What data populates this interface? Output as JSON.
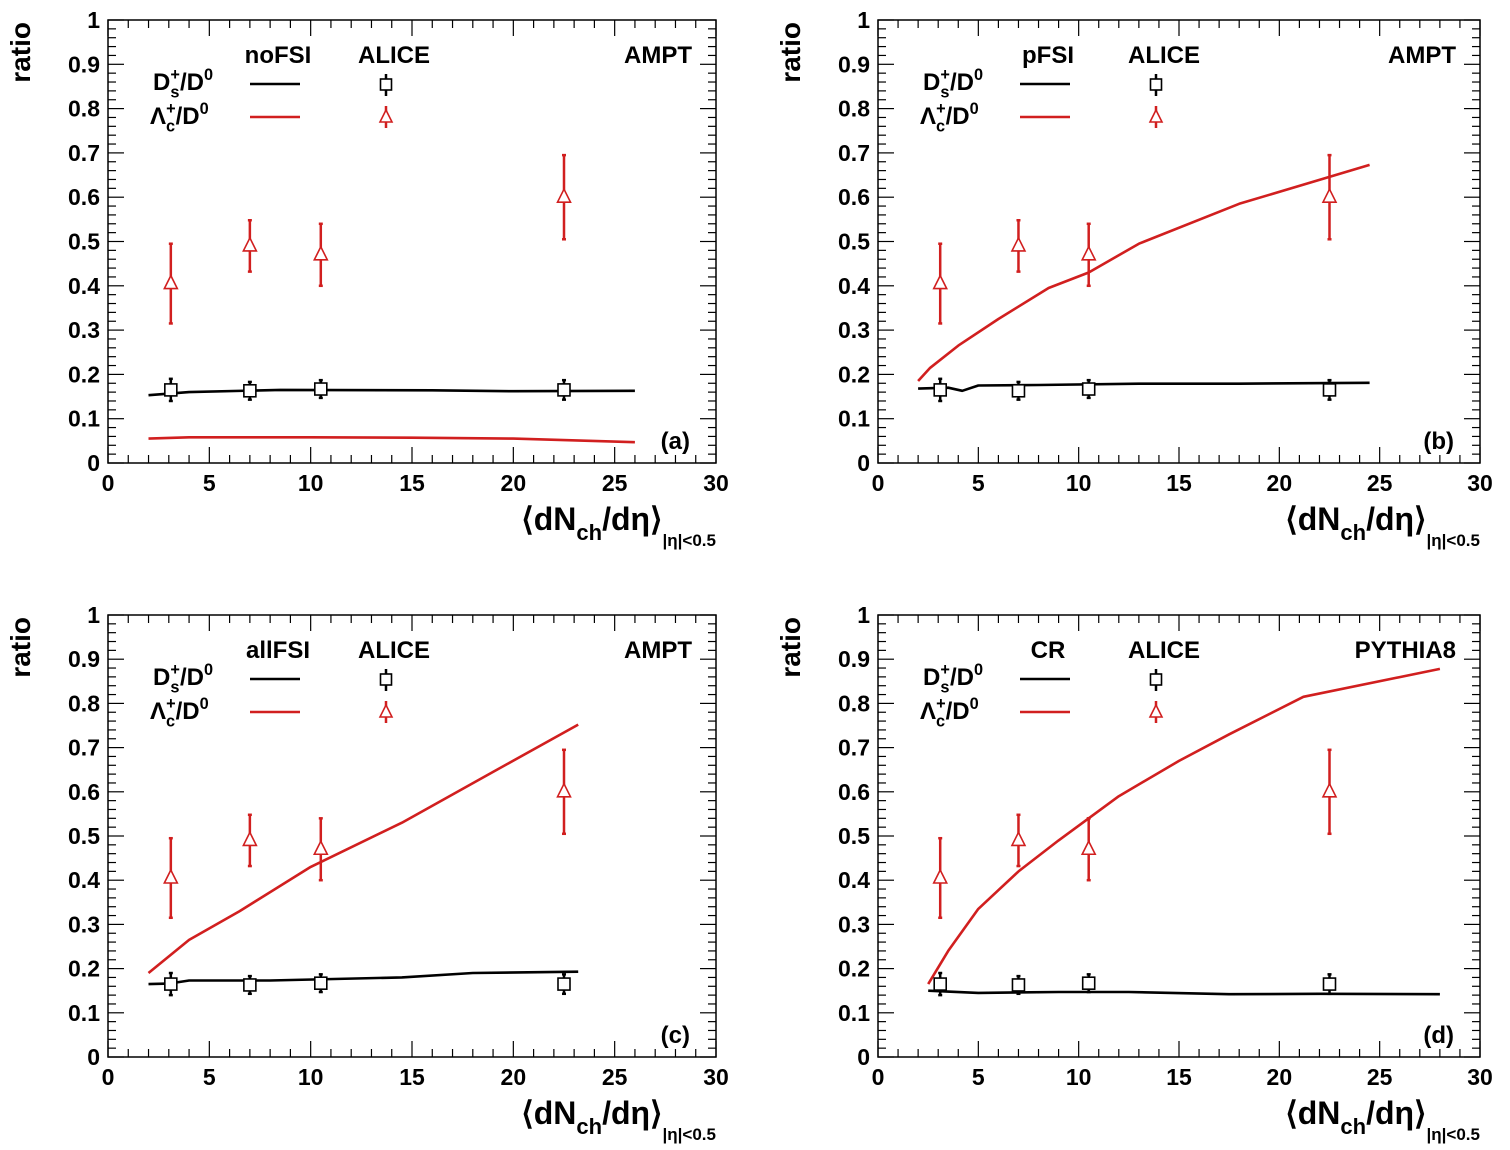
{
  "colors": {
    "black": "#000000",
    "red": "#d11f1f"
  },
  "chart_data": [
    {
      "type": "line",
      "panel_label": "(a)",
      "model_label": "noFSI",
      "data_label": "ALICE",
      "generator_label": "AMPT",
      "legend_ds": "D_s^+/D^0",
      "legend_lc": "Λ_c^+/D^0",
      "ylabel": "ratio",
      "xlabel": "⟨dN_ch/dη⟩_|η|<0.5",
      "xlim": [
        0,
        30
      ],
      "ylim": [
        0,
        1
      ],
      "x_ticks": [
        "0",
        "5",
        "10",
        "15",
        "20",
        "25",
        "30"
      ],
      "y_ticks": [
        "0",
        "0.1",
        "0.2",
        "0.3",
        "0.4",
        "0.5",
        "0.6",
        "0.7",
        "0.8",
        "0.9",
        "1"
      ],
      "series": [
        {
          "name": "D_s^+/D^0",
          "kind": "model",
          "x": [
            2,
            4,
            8.5,
            16,
            20,
            26
          ],
          "y": [
            0.153,
            0.16,
            0.165,
            0.164,
            0.162,
            0.163
          ]
        },
        {
          "name": "Λ_c^+/D^0",
          "kind": "model",
          "x": [
            2,
            4,
            10,
            15,
            20,
            26
          ],
          "y": [
            0.055,
            0.058,
            0.058,
            0.057,
            0.055,
            0.047
          ]
        },
        {
          "name": "D_s^+/D^0",
          "kind": "ALICE",
          "x": [
            3.1,
            7,
            10.5,
            22.5
          ],
          "y": [
            0.165,
            0.163,
            0.167,
            0.165
          ],
          "err": [
            0.025,
            0.02,
            0.02,
            0.022
          ]
        },
        {
          "name": "Λ_c^+/D^0",
          "kind": "ALICE",
          "x": [
            3.1,
            7,
            10.5,
            22.5
          ],
          "y": [
            0.405,
            0.49,
            0.47,
            0.6
          ],
          "err": [
            0.09,
            0.058,
            0.07,
            0.095
          ]
        }
      ]
    },
    {
      "type": "line",
      "panel_label": "(b)",
      "model_label": "pFSI",
      "data_label": "ALICE",
      "generator_label": "AMPT",
      "legend_ds": "D_s^+/D^0",
      "legend_lc": "Λ_c^+/D^0",
      "ylabel": "ratio",
      "xlabel": "⟨dN_ch/dη⟩_|η|<0.5",
      "xlim": [
        0,
        30
      ],
      "ylim": [
        0,
        1
      ],
      "x_ticks": [
        "0",
        "5",
        "10",
        "15",
        "20",
        "25",
        "30"
      ],
      "y_ticks": [
        "0",
        "0.1",
        "0.2",
        "0.3",
        "0.4",
        "0.5",
        "0.6",
        "0.7",
        "0.8",
        "0.9",
        "1"
      ],
      "series": [
        {
          "name": "D_s^+/D^0",
          "kind": "model",
          "x": [
            2,
            3.5,
            4.2,
            5,
            8,
            13,
            18,
            24.5
          ],
          "y": [
            0.168,
            0.17,
            0.163,
            0.175,
            0.176,
            0.179,
            0.179,
            0.181
          ]
        },
        {
          "name": "Λ_c^+/D^0",
          "kind": "model",
          "x": [
            2,
            2.6,
            4,
            6,
            8.5,
            10.5,
            13,
            18,
            24.5
          ],
          "y": [
            0.185,
            0.215,
            0.265,
            0.325,
            0.395,
            0.43,
            0.495,
            0.585,
            0.673
          ]
        },
        {
          "name": "D_s^+/D^0",
          "kind": "ALICE",
          "x": [
            3.1,
            7,
            10.5,
            22.5
          ],
          "y": [
            0.165,
            0.163,
            0.167,
            0.165
          ],
          "err": [
            0.025,
            0.02,
            0.02,
            0.022
          ]
        },
        {
          "name": "Λ_c^+/D^0",
          "kind": "ALICE",
          "x": [
            3.1,
            7,
            10.5,
            22.5
          ],
          "y": [
            0.405,
            0.49,
            0.47,
            0.6
          ],
          "err": [
            0.09,
            0.058,
            0.07,
            0.095
          ]
        }
      ]
    },
    {
      "type": "line",
      "panel_label": "(c)",
      "model_label": "allFSI",
      "data_label": "ALICE",
      "generator_label": "AMPT",
      "legend_ds": "D_s^+/D^0",
      "legend_lc": "Λ_c^+/D^0",
      "ylabel": "ratio",
      "xlabel": "⟨dN_ch/dη⟩_|η|<0.5",
      "xlim": [
        0,
        30
      ],
      "ylim": [
        0,
        1
      ],
      "x_ticks": [
        "0",
        "5",
        "10",
        "15",
        "20",
        "25",
        "30"
      ],
      "y_ticks": [
        "0",
        "0.1",
        "0.2",
        "0.3",
        "0.4",
        "0.5",
        "0.6",
        "0.7",
        "0.8",
        "0.9",
        "1"
      ],
      "series": [
        {
          "name": "D_s^+/D^0",
          "kind": "model",
          "x": [
            2,
            3,
            4,
            8,
            14.5,
            18,
            23.2
          ],
          "y": [
            0.165,
            0.166,
            0.173,
            0.173,
            0.18,
            0.19,
            0.193
          ]
        },
        {
          "name": "Λ_c^+/D^0",
          "kind": "model",
          "x": [
            2,
            4,
            6.5,
            10,
            14.5,
            19,
            23.2
          ],
          "y": [
            0.19,
            0.265,
            0.33,
            0.43,
            0.53,
            0.645,
            0.752
          ]
        },
        {
          "name": "D_s^+/D^0",
          "kind": "ALICE",
          "x": [
            3.1,
            7,
            10.5,
            22.5
          ],
          "y": [
            0.165,
            0.163,
            0.167,
            0.165
          ],
          "err": [
            0.025,
            0.02,
            0.02,
            0.022
          ]
        },
        {
          "name": "Λ_c^+/D^0",
          "kind": "ALICE",
          "x": [
            3.1,
            7,
            10.5,
            22.5
          ],
          "y": [
            0.405,
            0.49,
            0.47,
            0.6
          ],
          "err": [
            0.09,
            0.058,
            0.07,
            0.095
          ]
        }
      ]
    },
    {
      "type": "line",
      "panel_label": "(d)",
      "model_label": "CR",
      "data_label": "ALICE",
      "generator_label": "PYTHIA8",
      "legend_ds": "D_s^+/D^0",
      "legend_lc": "Λ_c^+/D^0",
      "ylabel": "ratio",
      "xlabel": "⟨dN_ch/dη⟩_|η|<0.5",
      "xlim": [
        0,
        30
      ],
      "ylim": [
        0,
        1
      ],
      "x_ticks": [
        "0",
        "5",
        "10",
        "15",
        "20",
        "25",
        "30"
      ],
      "y_ticks": [
        "0",
        "0.1",
        "0.2",
        "0.3",
        "0.4",
        "0.5",
        "0.6",
        "0.7",
        "0.8",
        "0.9",
        "1"
      ],
      "series": [
        {
          "name": "D_s^+/D^0",
          "kind": "model",
          "x": [
            2.5,
            5,
            9,
            12.5,
            17.5,
            22,
            28
          ],
          "y": [
            0.15,
            0.145,
            0.147,
            0.147,
            0.142,
            0.143,
            0.142
          ]
        },
        {
          "name": "Λ_c^+/D^0",
          "kind": "model",
          "x": [
            2.5,
            3.5,
            5,
            7,
            9,
            12,
            15,
            17.5,
            21.2,
            28
          ],
          "y": [
            0.165,
            0.24,
            0.335,
            0.42,
            0.49,
            0.59,
            0.67,
            0.73,
            0.815,
            0.878
          ]
        },
        {
          "name": "D_s^+/D^0",
          "kind": "ALICE",
          "x": [
            3.1,
            7,
            10.5,
            22.5
          ],
          "y": [
            0.165,
            0.163,
            0.167,
            0.165
          ],
          "err": [
            0.025,
            0.02,
            0.02,
            0.022
          ]
        },
        {
          "name": "Λ_c^+/D^0",
          "kind": "ALICE",
          "x": [
            3.1,
            7,
            10.5,
            22.5
          ],
          "y": [
            0.405,
            0.49,
            0.47,
            0.6
          ],
          "err": [
            0.09,
            0.058,
            0.07,
            0.095
          ]
        }
      ]
    }
  ]
}
